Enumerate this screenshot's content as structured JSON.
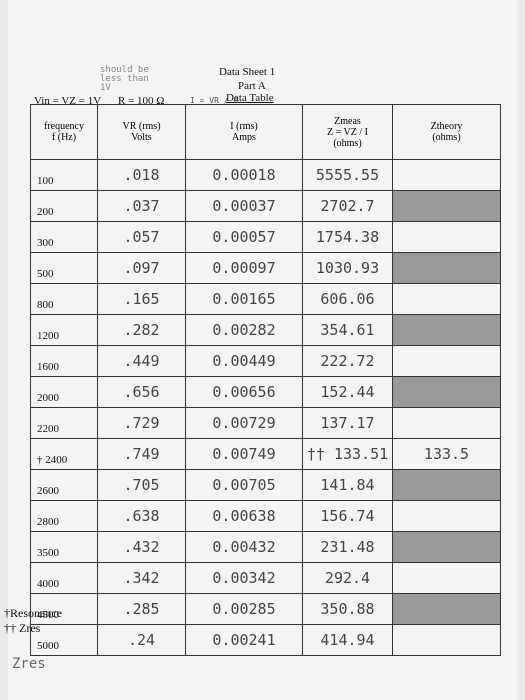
{
  "note": "should be less than 1V",
  "header": {
    "title": "Data Sheet 1",
    "part": "Part A",
    "subtitle": "Data Table",
    "formula": "I = VR / R"
  },
  "conditions": {
    "vin": "Vin = VZ = 1V",
    "r": "R = 100 Ω"
  },
  "table": {
    "columns": [
      [
        "frequency",
        "f (Hz)"
      ],
      [
        "VR (rms)",
        "Volts"
      ],
      [
        "I (rms)",
        "Amps"
      ],
      [
        "Zmeas",
        "Z = VZ / I",
        "(ohms)"
      ],
      [
        "Ztheory",
        "(ohms)"
      ]
    ],
    "rows": [
      [
        "100",
        ".018",
        "0.00018",
        "5555.55",
        null
      ],
      [
        "200",
        ".037",
        "0.00037",
        "2702.7",
        null
      ],
      [
        "300",
        ".057",
        "0.00057",
        "1754.38",
        null
      ],
      [
        "500",
        ".097",
        "0.00097",
        "1030.93",
        null
      ],
      [
        "800",
        ".165",
        "0.00165",
        "606.06",
        null
      ],
      [
        "1200",
        ".282",
        "0.00282",
        "354.61",
        null
      ],
      [
        "1600",
        ".449",
        "0.00449",
        "222.72",
        null
      ],
      [
        "2000",
        ".656",
        "0.00656",
        "152.44",
        null
      ],
      [
        "2200",
        ".729",
        "0.00729",
        "137.17",
        null
      ],
      [
        "† 2400",
        ".749",
        "0.00749",
        "†† 133.51",
        "133.5"
      ],
      [
        "2600",
        ".705",
        "0.00705",
        "141.84",
        null
      ],
      [
        "2800",
        ".638",
        "0.00638",
        "156.74",
        null
      ],
      [
        "3500",
        ".432",
        "0.00432",
        "231.48",
        null
      ],
      [
        "4000",
        ".342",
        "0.00342",
        "292.4",
        null
      ],
      [
        "4500",
        ".285",
        "0.00285",
        "350.88",
        null
      ],
      [
        "5000",
        ".24",
        "0.00241",
        "414.94",
        null
      ]
    ]
  },
  "footnotes": [
    "†Resonance",
    "†† Zres"
  ],
  "handwritten_footer": "Zres"
}
